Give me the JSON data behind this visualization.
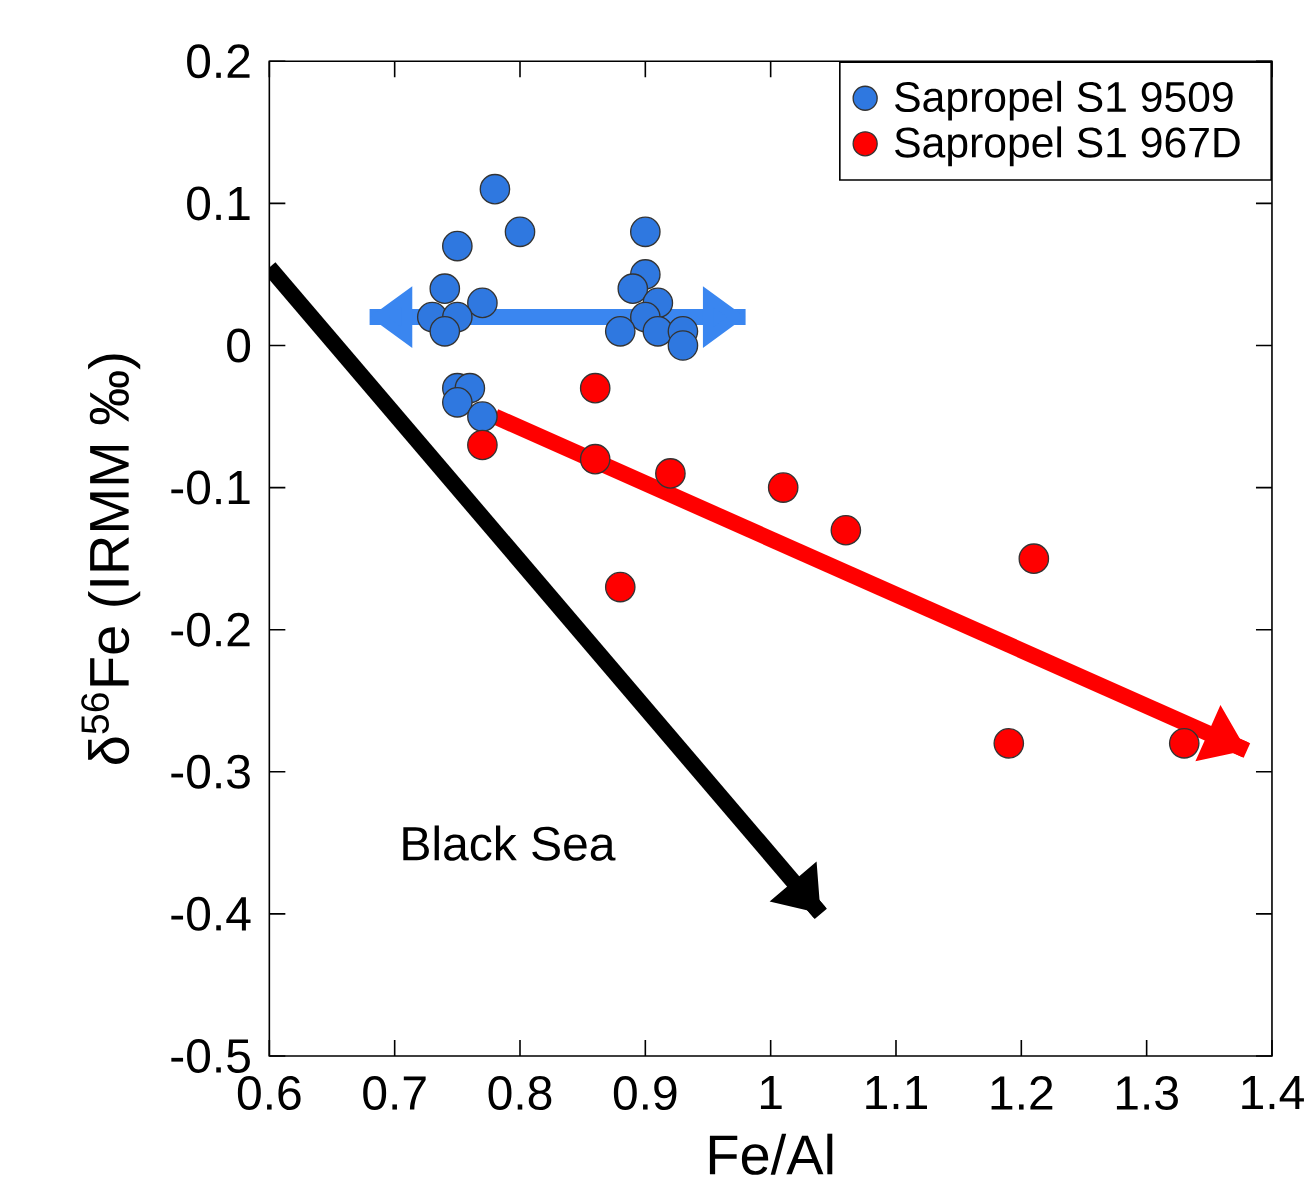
{
  "chart_data": {
    "type": "scatter",
    "xlabel": "Fe/Al",
    "ylabel": "δ$^{56}$Fe (IRMM ‰)",
    "xlim": [
      0.6,
      1.4
    ],
    "xticks": [
      0.6,
      0.7,
      0.8,
      0.9,
      1,
      1.1,
      1.2,
      1.3,
      1.4
    ],
    "ylim": [
      -0.5,
      0.2
    ],
    "yticks": [
      -0.5,
      -0.4,
      -0.3,
      -0.2,
      -0.1,
      0,
      0.1,
      0.2
    ],
    "legend": "top right",
    "annotations": [
      "Black Sea"
    ],
    "series": [
      {
        "name": "Sapropel S1 9509",
        "marker": "circle",
        "color": "#2f78e0",
        "x": [
          0.78,
          0.8,
          0.75,
          0.74,
          0.77,
          0.73,
          0.75,
          0.74,
          0.9,
          0.9,
          0.89,
          0.91,
          0.9,
          0.88,
          0.91,
          0.93,
          0.93,
          0.75,
          0.76,
          0.75,
          0.77
        ],
        "values": [
          0.11,
          0.08,
          0.07,
          0.04,
          0.03,
          0.02,
          0.02,
          0.01,
          0.08,
          0.05,
          0.04,
          0.03,
          0.02,
          0.01,
          0.01,
          0.01,
          0.0,
          -0.03,
          -0.03,
          -0.04,
          -0.05
        ]
      },
      {
        "name": "Sapropel S1 967D",
        "marker": "circle",
        "color": "#ff0000",
        "x": [
          0.86,
          0.77,
          0.86,
          0.92,
          1.01,
          1.06,
          1.21,
          0.88,
          1.19,
          1.33
        ],
        "values": [
          -0.03,
          -0.07,
          -0.08,
          -0.09,
          -0.1,
          -0.13,
          -0.15,
          -0.17,
          -0.28,
          -0.28
        ]
      },
      {
        "type": "line",
        "marker": "none",
        "color": "#3a86f0",
        "x": [
          0.68,
          0.98
        ],
        "values": [
          0.02,
          0.02
        ]
      },
      {
        "type": "line",
        "marker": "none",
        "color": "#ff0000",
        "x": [
          0.78,
          1.38
        ],
        "values": [
          -0.05,
          -0.285
        ]
      },
      {
        "type": "line",
        "marker": "none",
        "color": "#000000",
        "x": [
          0.6,
          1.04
        ],
        "values": [
          0.055,
          -0.4
        ]
      }
    ]
  }
}
